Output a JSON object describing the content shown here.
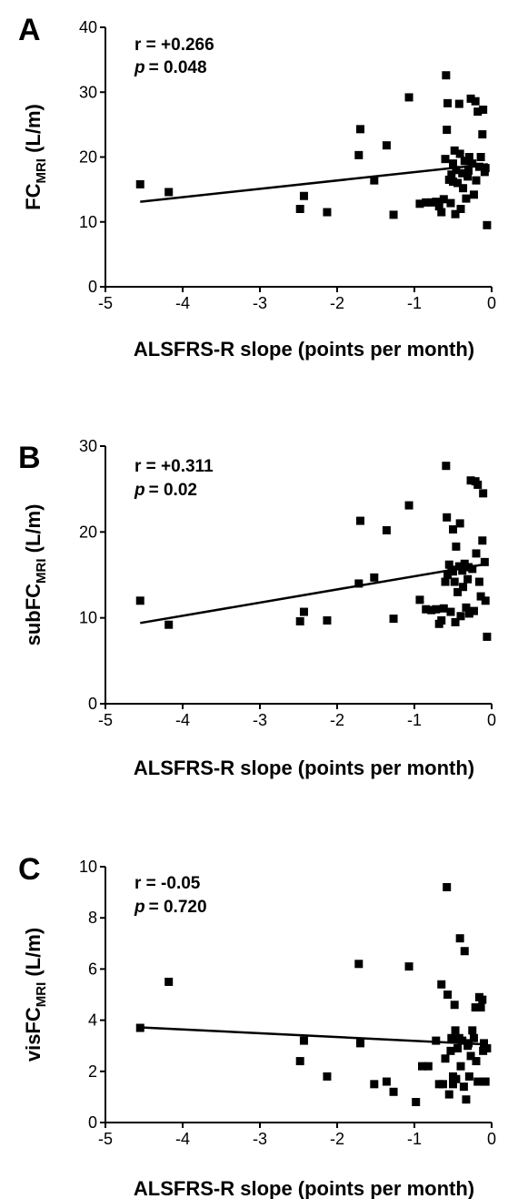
{
  "figure": {
    "panels": [
      {
        "letter": "A",
        "stat_r": "r = +0.266",
        "stat_p_label": "p",
        "stat_p_value": "= 0.048"
      },
      {
        "letter": "B",
        "stat_r": "r = +0.311",
        "stat_p_label": "p",
        "stat_p_value": "= 0.02"
      },
      {
        "letter": "C",
        "stat_r": "r = -0.05",
        "stat_p_label": "p",
        "stat_p_value": "= 0.720"
      }
    ]
  },
  "chart_data": [
    {
      "type": "scatter",
      "xlabel": "ALSFRS-R slope (points per month)",
      "ylabel_prefix": "FC",
      "ylabel_subscript": "MRI",
      "ylabel_suffix": " (L/m)",
      "xlim": [
        -5,
        0
      ],
      "ylim": [
        0,
        40
      ],
      "xticks": [
        -5,
        -4,
        -3,
        -2,
        -1,
        0
      ],
      "yticks": [
        0,
        10,
        20,
        30,
        40
      ],
      "grid": false,
      "annotations": [
        "r = +0.266",
        "p = 0.048"
      ],
      "regression_line": {
        "x": [
          -4.55,
          -0.05
        ],
        "y": [
          13.1,
          18.9
        ]
      },
      "points": [
        [
          -4.55,
          15.8
        ],
        [
          -4.18,
          14.6
        ],
        [
          -2.48,
          12.0
        ],
        [
          -2.43,
          14.0
        ],
        [
          -2.13,
          11.5
        ],
        [
          -1.72,
          20.3
        ],
        [
          -1.7,
          24.3
        ],
        [
          -1.52,
          16.4
        ],
        [
          -1.36,
          21.8
        ],
        [
          -1.27,
          11.1
        ],
        [
          -1.07,
          29.2
        ],
        [
          -0.93,
          12.8
        ],
        [
          -0.85,
          13.0
        ],
        [
          -0.78,
          13.0
        ],
        [
          -0.72,
          13.1
        ],
        [
          -0.68,
          12.4
        ],
        [
          -0.65,
          11.5
        ],
        [
          -0.62,
          13.5
        ],
        [
          -0.6,
          19.7
        ],
        [
          -0.59,
          32.6
        ],
        [
          -0.58,
          24.2
        ],
        [
          -0.57,
          28.3
        ],
        [
          -0.55,
          16.5
        ],
        [
          -0.53,
          12.9
        ],
        [
          -0.52,
          17.3
        ],
        [
          -0.5,
          19.0
        ],
        [
          -0.48,
          21.0
        ],
        [
          -0.47,
          11.2
        ],
        [
          -0.46,
          18.0
        ],
        [
          -0.44,
          16.0
        ],
        [
          -0.42,
          28.2
        ],
        [
          -0.41,
          20.5
        ],
        [
          -0.4,
          12.0
        ],
        [
          -0.38,
          17.5
        ],
        [
          -0.37,
          15.2
        ],
        [
          -0.35,
          19.4
        ],
        [
          -0.33,
          13.6
        ],
        [
          -0.31,
          17.0
        ],
        [
          -0.29,
          20.0
        ],
        [
          -0.27,
          29.0
        ],
        [
          -0.25,
          19.0
        ],
        [
          -0.23,
          14.2
        ],
        [
          -0.21,
          28.6
        ],
        [
          -0.2,
          16.4
        ],
        [
          -0.18,
          27.0
        ],
        [
          -0.16,
          18.5
        ],
        [
          -0.14,
          20.0
        ],
        [
          -0.12,
          23.5
        ],
        [
          -0.11,
          27.3
        ],
        [
          -0.09,
          17.7
        ],
        [
          -0.08,
          18.3
        ],
        [
          -0.06,
          9.5
        ],
        [
          -0.5,
          16.2
        ],
        [
          -0.3,
          17.9
        ]
      ]
    },
    {
      "type": "scatter",
      "xlabel": "ALSFRS-R slope (points per month)",
      "ylabel_prefix": "subFC",
      "ylabel_subscript": "MRI",
      "ylabel_suffix": " (L/m)",
      "xlim": [
        -5,
        0
      ],
      "ylim": [
        0,
        30
      ],
      "xticks": [
        -5,
        -4,
        -3,
        -2,
        -1,
        0
      ],
      "yticks": [
        0,
        10,
        20,
        30
      ],
      "grid": false,
      "annotations": [
        "r = +0.311",
        "p = 0.02"
      ],
      "regression_line": {
        "x": [
          -4.55,
          -0.05
        ],
        "y": [
          9.4,
          16.3
        ]
      },
      "points": [
        [
          -4.55,
          12.0
        ],
        [
          -4.18,
          9.2
        ],
        [
          -2.48,
          9.6
        ],
        [
          -2.43,
          10.7
        ],
        [
          -2.13,
          9.7
        ],
        [
          -1.72,
          14.0
        ],
        [
          -1.7,
          21.3
        ],
        [
          -1.52,
          14.7
        ],
        [
          -1.36,
          20.2
        ],
        [
          -1.27,
          9.9
        ],
        [
          -1.07,
          23.1
        ],
        [
          -0.93,
          12.1
        ],
        [
          -0.85,
          11.0
        ],
        [
          -0.78,
          10.9
        ],
        [
          -0.72,
          11.0
        ],
        [
          -0.68,
          9.3
        ],
        [
          -0.65,
          9.7
        ],
        [
          -0.62,
          11.1
        ],
        [
          -0.6,
          14.2
        ],
        [
          -0.59,
          27.7
        ],
        [
          -0.58,
          21.7
        ],
        [
          -0.57,
          15.0
        ],
        [
          -0.55,
          16.2
        ],
        [
          -0.53,
          10.7
        ],
        [
          -0.52,
          15.6
        ],
        [
          -0.5,
          20.3
        ],
        [
          -0.48,
          14.2
        ],
        [
          -0.47,
          9.5
        ],
        [
          -0.46,
          18.3
        ],
        [
          -0.44,
          13.0
        ],
        [
          -0.42,
          16.0
        ],
        [
          -0.41,
          21.0
        ],
        [
          -0.4,
          10.2
        ],
        [
          -0.38,
          15.5
        ],
        [
          -0.37,
          13.6
        ],
        [
          -0.35,
          16.3
        ],
        [
          -0.33,
          11.2
        ],
        [
          -0.31,
          14.5
        ],
        [
          -0.29,
          10.5
        ],
        [
          -0.27,
          26.0
        ],
        [
          -0.25,
          15.7
        ],
        [
          -0.23,
          10.8
        ],
        [
          -0.21,
          25.9
        ],
        [
          -0.2,
          17.5
        ],
        [
          -0.18,
          25.5
        ],
        [
          -0.16,
          14.2
        ],
        [
          -0.14,
          12.5
        ],
        [
          -0.12,
          19.0
        ],
        [
          -0.11,
          24.5
        ],
        [
          -0.09,
          16.5
        ],
        [
          -0.08,
          12.0
        ],
        [
          -0.06,
          7.8
        ],
        [
          -0.5,
          15.4
        ],
        [
          -0.3,
          15.9
        ]
      ]
    },
    {
      "type": "scatter",
      "xlabel": "ALSFRS-R slope (points per month)",
      "ylabel_prefix": "visFC",
      "ylabel_subscript": "MRI",
      "ylabel_suffix": " (L/m)",
      "xlim": [
        -5,
        0
      ],
      "ylim": [
        0,
        10
      ],
      "xticks": [
        -5,
        -4,
        -3,
        -2,
        -1,
        0
      ],
      "yticks": [
        0,
        2,
        4,
        6,
        8,
        10
      ],
      "grid": false,
      "annotations": [
        "r = -0.05",
        "p = 0.720"
      ],
      "regression_line": {
        "x": [
          -4.55,
          -0.05
        ],
        "y": [
          3.72,
          3.05
        ]
      },
      "points": [
        [
          -4.55,
          3.7
        ],
        [
          -4.18,
          5.5
        ],
        [
          -2.48,
          2.4
        ],
        [
          -2.43,
          3.2
        ],
        [
          -2.13,
          1.8
        ],
        [
          -1.72,
          6.2
        ],
        [
          -1.7,
          3.1
        ],
        [
          -1.52,
          1.5
        ],
        [
          -1.36,
          1.6
        ],
        [
          -1.27,
          1.2
        ],
        [
          -1.07,
          6.1
        ],
        [
          -0.98,
          0.8
        ],
        [
          -0.9,
          2.2
        ],
        [
          -0.82,
          2.2
        ],
        [
          -0.72,
          3.2
        ],
        [
          -0.68,
          1.5
        ],
        [
          -0.65,
          5.4
        ],
        [
          -0.63,
          1.5
        ],
        [
          -0.6,
          2.5
        ],
        [
          -0.58,
          9.2
        ],
        [
          -0.57,
          5.0
        ],
        [
          -0.55,
          1.1
        ],
        [
          -0.53,
          2.8
        ],
        [
          -0.52,
          3.3
        ],
        [
          -0.5,
          1.8
        ],
        [
          -0.48,
          4.6
        ],
        [
          -0.47,
          3.6
        ],
        [
          -0.46,
          1.7
        ],
        [
          -0.44,
          2.9
        ],
        [
          -0.42,
          3.3
        ],
        [
          -0.41,
          7.2
        ],
        [
          -0.4,
          2.2
        ],
        [
          -0.38,
          3.2
        ],
        [
          -0.36,
          1.4
        ],
        [
          -0.35,
          6.7
        ],
        [
          -0.33,
          0.9
        ],
        [
          -0.31,
          3.0
        ],
        [
          -0.29,
          1.8
        ],
        [
          -0.27,
          2.6
        ],
        [
          -0.25,
          3.6
        ],
        [
          -0.23,
          3.3
        ],
        [
          -0.21,
          4.5
        ],
        [
          -0.2,
          2.4
        ],
        [
          -0.18,
          1.6
        ],
        [
          -0.16,
          4.9
        ],
        [
          -0.14,
          4.5
        ],
        [
          -0.12,
          4.8
        ],
        [
          -0.11,
          2.8
        ],
        [
          -0.09,
          1.6
        ],
        [
          -0.08,
          1.6
        ],
        [
          -0.06,
          2.9
        ],
        [
          -0.5,
          1.5
        ],
        [
          -0.3,
          3.1
        ],
        [
          -0.1,
          3.1
        ]
      ]
    }
  ]
}
